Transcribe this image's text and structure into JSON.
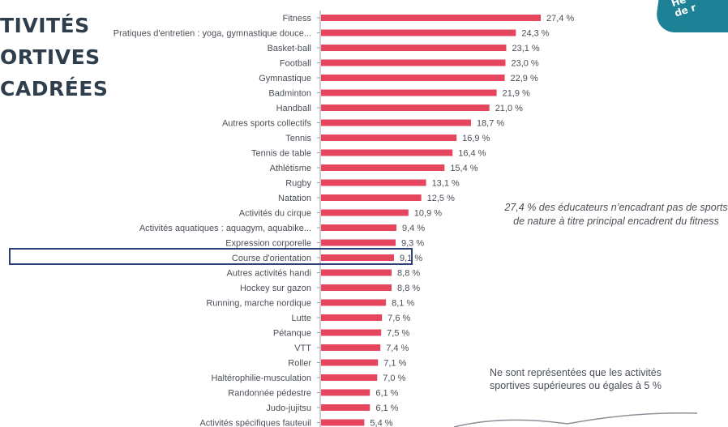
{
  "side_title": {
    "line1": "TIVITÉS",
    "line2": "ORTIVES",
    "line3": "CADRÉES"
  },
  "badge": {
    "line1": "He",
    "line2": "de r"
  },
  "notes": {
    "fitness": "27,4 % des éducateurs n’encadrant pas de sports de nature à titre principal encadrent du fitness",
    "threshold": "Ne sont représentées que les activités sportives supérieures ou égales à 5 %"
  },
  "colors": {
    "bar": "#e6455e",
    "axis": "#9aa0a8",
    "label": "#4a4f57",
    "title": "#2f3e4d",
    "badge": "#1d8295",
    "highlight": "#2c3f78"
  },
  "chart_data": {
    "type": "bar",
    "orientation": "horizontal",
    "unit": "%",
    "highlighted_category": "Course d'orientation",
    "categories": [
      "Fitness",
      "Pratiques d'entretien : yoga, gymnastique douce...",
      "Basket-ball",
      "Football",
      "Gymnastique",
      "Badminton",
      "Handball",
      "Autres sports collectifs",
      "Tennis",
      "Tennis de table",
      "Athlétisme",
      "Rugby",
      "Natation",
      "Activités du cirque",
      "Activités aquatiques : aquagym, aquabike...",
      "Expression corporelle",
      "Course d'orientation",
      "Autres activités handi",
      "Hockey sur gazon",
      "Running, marche nordique",
      "Lutte",
      "Pétanque",
      "VTT",
      "Roller",
      "Haltérophilie-musculation",
      "Randonnée pédestre",
      "Judo-jujitsu",
      "Activités spécifiques fauteuil"
    ],
    "values": [
      27.4,
      24.3,
      23.1,
      23.0,
      22.9,
      21.9,
      21.0,
      18.7,
      16.9,
      16.4,
      15.4,
      13.1,
      12.5,
      10.9,
      9.4,
      9.3,
      9.1,
      8.8,
      8.8,
      8.1,
      7.6,
      7.5,
      7.4,
      7.1,
      7.0,
      6.1,
      6.1,
      5.4
    ],
    "value_labels": [
      "27,4 %",
      "24,3 %",
      "23,1 %",
      "23,0 %",
      "22,9 %",
      "21,9 %",
      "21,0 %",
      "18,7 %",
      "16,9 %",
      "16,4 %",
      "15,4 %",
      "13,1 %",
      "12,5 %",
      "10,9 %",
      "9,4 %",
      "9,3 %",
      "9,1 %",
      "8,8 %",
      "8,8 %",
      "8,1 %",
      "7,6 %",
      "7,5 %",
      "7,4 %",
      "7,1 %",
      "7,0 %",
      "6,1 %",
      "6,1 %",
      "5,4 %"
    ],
    "xlim": [
      0,
      30
    ]
  }
}
